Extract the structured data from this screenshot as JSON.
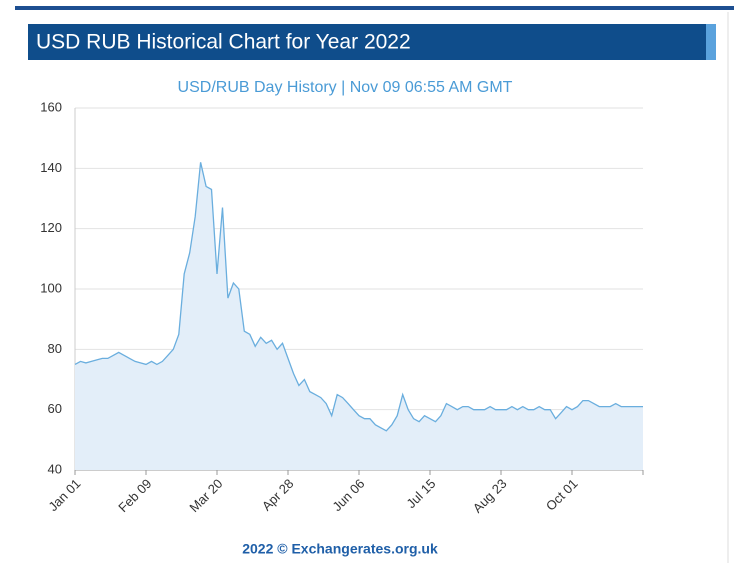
{
  "header": {
    "title": "USD RUB Historical Chart for Year 2022"
  },
  "chart_data": {
    "type": "area",
    "title": "USD/RUB  Day History | Nov 09 06:55 AM GMT",
    "footer": "2022 © Exchangerates.org.uk",
    "color": "#6aaede",
    "fill": "#e3eef9",
    "grid": true,
    "ylim": [
      40,
      160
    ],
    "yticks": [
      40,
      60,
      80,
      100,
      120,
      140,
      160
    ],
    "categories": [
      "Jan 01",
      null,
      null,
      null,
      null,
      null,
      null,
      null,
      null,
      null,
      null,
      null,
      null,
      "Feb 09",
      null,
      null,
      null,
      null,
      null,
      null,
      null,
      null,
      null,
      null,
      null,
      null,
      "Mar 20",
      null,
      null,
      null,
      null,
      null,
      null,
      null,
      null,
      null,
      null,
      null,
      null,
      "Apr 28",
      null,
      null,
      null,
      null,
      null,
      null,
      null,
      null,
      null,
      null,
      null,
      null,
      "Jun 06",
      null,
      null,
      null,
      null,
      null,
      null,
      null,
      null,
      null,
      null,
      null,
      null,
      "Jul 15",
      null,
      null,
      null,
      null,
      null,
      null,
      null,
      null,
      null,
      null,
      null,
      null,
      "Aug 23",
      null,
      null,
      null,
      null,
      null,
      null,
      null,
      null,
      null,
      null,
      null,
      null,
      "Oct 01",
      null,
      null,
      null,
      null,
      null,
      null,
      null,
      null,
      null,
      null,
      null,
      null,
      null
    ],
    "values": [
      75,
      76,
      75.5,
      76,
      76.5,
      77,
      77,
      78,
      79,
      78,
      77,
      76,
      75.5,
      75,
      76,
      75,
      76,
      78,
      80,
      85,
      105,
      112,
      124,
      142,
      134,
      133,
      105,
      127,
      97,
      102,
      100,
      86,
      85,
      81,
      84,
      82,
      83,
      80,
      82,
      77,
      72,
      68,
      70,
      66,
      65,
      64,
      62,
      58,
      65,
      64,
      62,
      60,
      58,
      57,
      57,
      55,
      54,
      53,
      55,
      58,
      65,
      60,
      57,
      56,
      58,
      57,
      56,
      58,
      62,
      61,
      60,
      61,
      61,
      60,
      60,
      60,
      61,
      60,
      60,
      60,
      61,
      60,
      61,
      60,
      60,
      61,
      60,
      60,
      57,
      59,
      61,
      60,
      61,
      63,
      63,
      62,
      61,
      61,
      61,
      62,
      61,
      61,
      61,
      61,
      61
    ]
  }
}
